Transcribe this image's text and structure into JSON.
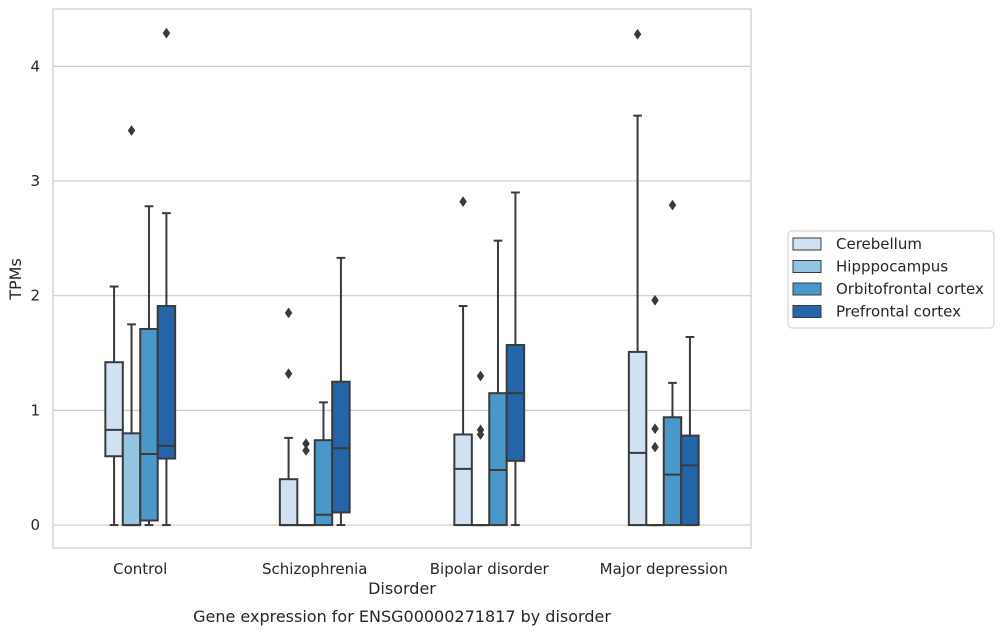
{
  "chart_data": {
    "type": "box",
    "xlabel": "Disorder",
    "ylabel": "TPMs",
    "caption": "Gene expression for ENSG00000271817 by disorder",
    "categories": [
      "Control",
      "Schizophrenia",
      "Bipolar disorder",
      "Major depression"
    ],
    "ylim": [
      -0.2,
      4.5
    ],
    "yticks": [
      0,
      1,
      2,
      3,
      4
    ],
    "grid": true,
    "legend_position": "right",
    "series": [
      {
        "name": "Cerebellum",
        "color": "#d0e1f2",
        "boxes": [
          {
            "whisker_low": 0,
            "q1": 0.6,
            "median": 0.83,
            "q3": 1.42,
            "whisker_high": 2.08,
            "outliers": []
          },
          {
            "whisker_low": 0,
            "q1": 0,
            "median": 0,
            "q3": 0.4,
            "whisker_high": 0.76,
            "outliers": [
              1.32,
              1.85
            ]
          },
          {
            "whisker_low": 0,
            "q1": 0,
            "median": 0.49,
            "q3": 0.79,
            "whisker_high": 1.91,
            "outliers": [
              2.82
            ]
          },
          {
            "whisker_low": 0,
            "q1": 0,
            "median": 0.63,
            "q3": 1.51,
            "whisker_high": 3.57,
            "outliers": [
              4.28
            ]
          }
        ]
      },
      {
        "name": "Hipppocampus",
        "color": "#94c4df",
        "boxes": [
          {
            "whisker_low": 0,
            "q1": 0,
            "median": 0,
            "q3": 0.8,
            "whisker_high": 1.75,
            "outliers": [
              3.44
            ]
          },
          {
            "whisker_low": 0,
            "q1": 0,
            "median": 0,
            "q3": 0,
            "whisker_high": 0,
            "outliers": [
              0.65,
              0.71
            ]
          },
          {
            "whisker_low": 0,
            "q1": 0,
            "median": 0,
            "q3": 0,
            "whisker_high": 0,
            "outliers": [
              0.79,
              0.83,
              1.3
            ]
          },
          {
            "whisker_low": 0,
            "q1": 0,
            "median": 0,
            "q3": 0,
            "whisker_high": 0,
            "outliers": [
              0.68,
              0.84,
              1.96
            ]
          }
        ]
      },
      {
        "name": "Orbitofrontal cortex",
        "color": "#4a98c9",
        "boxes": [
          {
            "whisker_low": 0,
            "q1": 0.04,
            "median": 0.62,
            "q3": 1.71,
            "whisker_high": 2.78,
            "outliers": []
          },
          {
            "whisker_low": 0,
            "q1": 0,
            "median": 0.09,
            "q3": 0.74,
            "whisker_high": 1.07,
            "outliers": []
          },
          {
            "whisker_low": 0,
            "q1": 0,
            "median": 0.48,
            "q3": 1.15,
            "whisker_high": 2.48,
            "outliers": []
          },
          {
            "whisker_low": 0,
            "q1": 0,
            "median": 0.44,
            "q3": 0.94,
            "whisker_high": 1.24,
            "outliers": [
              2.79
            ]
          }
        ]
      },
      {
        "name": "Prefrontal cortex",
        "color": "#2464a8",
        "boxes": [
          {
            "whisker_low": 0,
            "q1": 0.58,
            "median": 0.69,
            "q3": 1.91,
            "whisker_high": 2.72,
            "outliers": [
              4.29
            ]
          },
          {
            "whisker_low": 0,
            "q1": 0.11,
            "median": 0.67,
            "q3": 1.25,
            "whisker_high": 2.33,
            "outliers": []
          },
          {
            "whisker_low": 0,
            "q1": 0.56,
            "median": 1.15,
            "q3": 1.57,
            "whisker_high": 2.9,
            "outliers": []
          },
          {
            "whisker_low": 0,
            "q1": 0,
            "median": 0.52,
            "q3": 0.78,
            "whisker_high": 1.64,
            "outliers": []
          }
        ]
      }
    ]
  },
  "colors": {
    "grid": "#cccccc",
    "frame": "#cccccc",
    "box_edge": "#3a3a3a",
    "outlier": "#3a3a3a"
  }
}
